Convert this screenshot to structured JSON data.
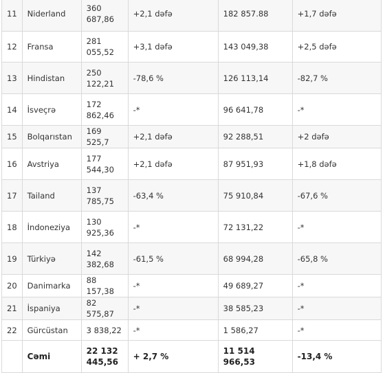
{
  "rows": [
    {
      "num": "11",
      "country": "Niderland",
      "v1": "360 687,86",
      "c1": "+2,1 dəfə",
      "v2": "182 857.88",
      "c2": "+1,7 dəfə"
    },
    {
      "num": "12",
      "country": "Fransa",
      "v1": "281 055,52",
      "c1": "+3,1 dəfə",
      "v2": "143 049,38",
      "c2": "+2,5 dəfə"
    },
    {
      "num": "13",
      "country": "Hindistan",
      "v1": "250 122,21",
      "c1": "-78,6 %",
      "v2": "126 113,14",
      "c2": "-82,7 %"
    },
    {
      "num": "14",
      "country": "İsveçrə",
      "v1": "172 862,46",
      "c1": "-*",
      "v2": "96 641,78",
      "c2": "-*"
    },
    {
      "num": "15",
      "country": "Bolqarıstan",
      "v1": "169 525,7",
      "c1": "+2,1 dəfə",
      "v2": "92 288,51",
      "c2": "+2 dəfə"
    },
    {
      "num": "16",
      "country": "Avstriya",
      "v1": "177 544,30",
      "c1": "+2,1 dəfə",
      "v2": "87 951,93",
      "c2": "+1,8 dəfə"
    },
    {
      "num": "17",
      "country": "Tailand",
      "v1": "137 785,75",
      "c1": "-63,4 %",
      "v2": "75 910,84",
      "c2": "-67,6 %"
    },
    {
      "num": "18",
      "country": "İndoneziya",
      "v1": "130 925,36",
      "c1": "-*",
      "v2": "72 131,22",
      "c2": "-*"
    },
    {
      "num": "19",
      "country": "Türkiyə",
      "v1": "142 382,68",
      "c1": "-61,5 %",
      "v2": "68 994,28",
      "c2": "-65,8 %"
    },
    {
      "num": "20",
      "country": "Danimarka",
      "v1": "88 157,38",
      "c1": "-*",
      "v2": "49 689,27",
      "c2": "-*"
    },
    {
      "num": "21",
      "country": "İspaniya",
      "v1": "82 575,87",
      "c1": "-*",
      "v2": "38 585,23",
      "c2": "-*"
    },
    {
      "num": "22",
      "country": "Gürcüstan",
      "v1": "3 838,22",
      "c1": "-*",
      "v2": "1 586,27",
      "c2": "-*"
    }
  ],
  "total": {
    "label": "Cəmi",
    "v1": "22 132 445,56",
    "c1": "+ 2,7 %",
    "v2": "11 514 966,53",
    "c2": "-13,4 %"
  }
}
